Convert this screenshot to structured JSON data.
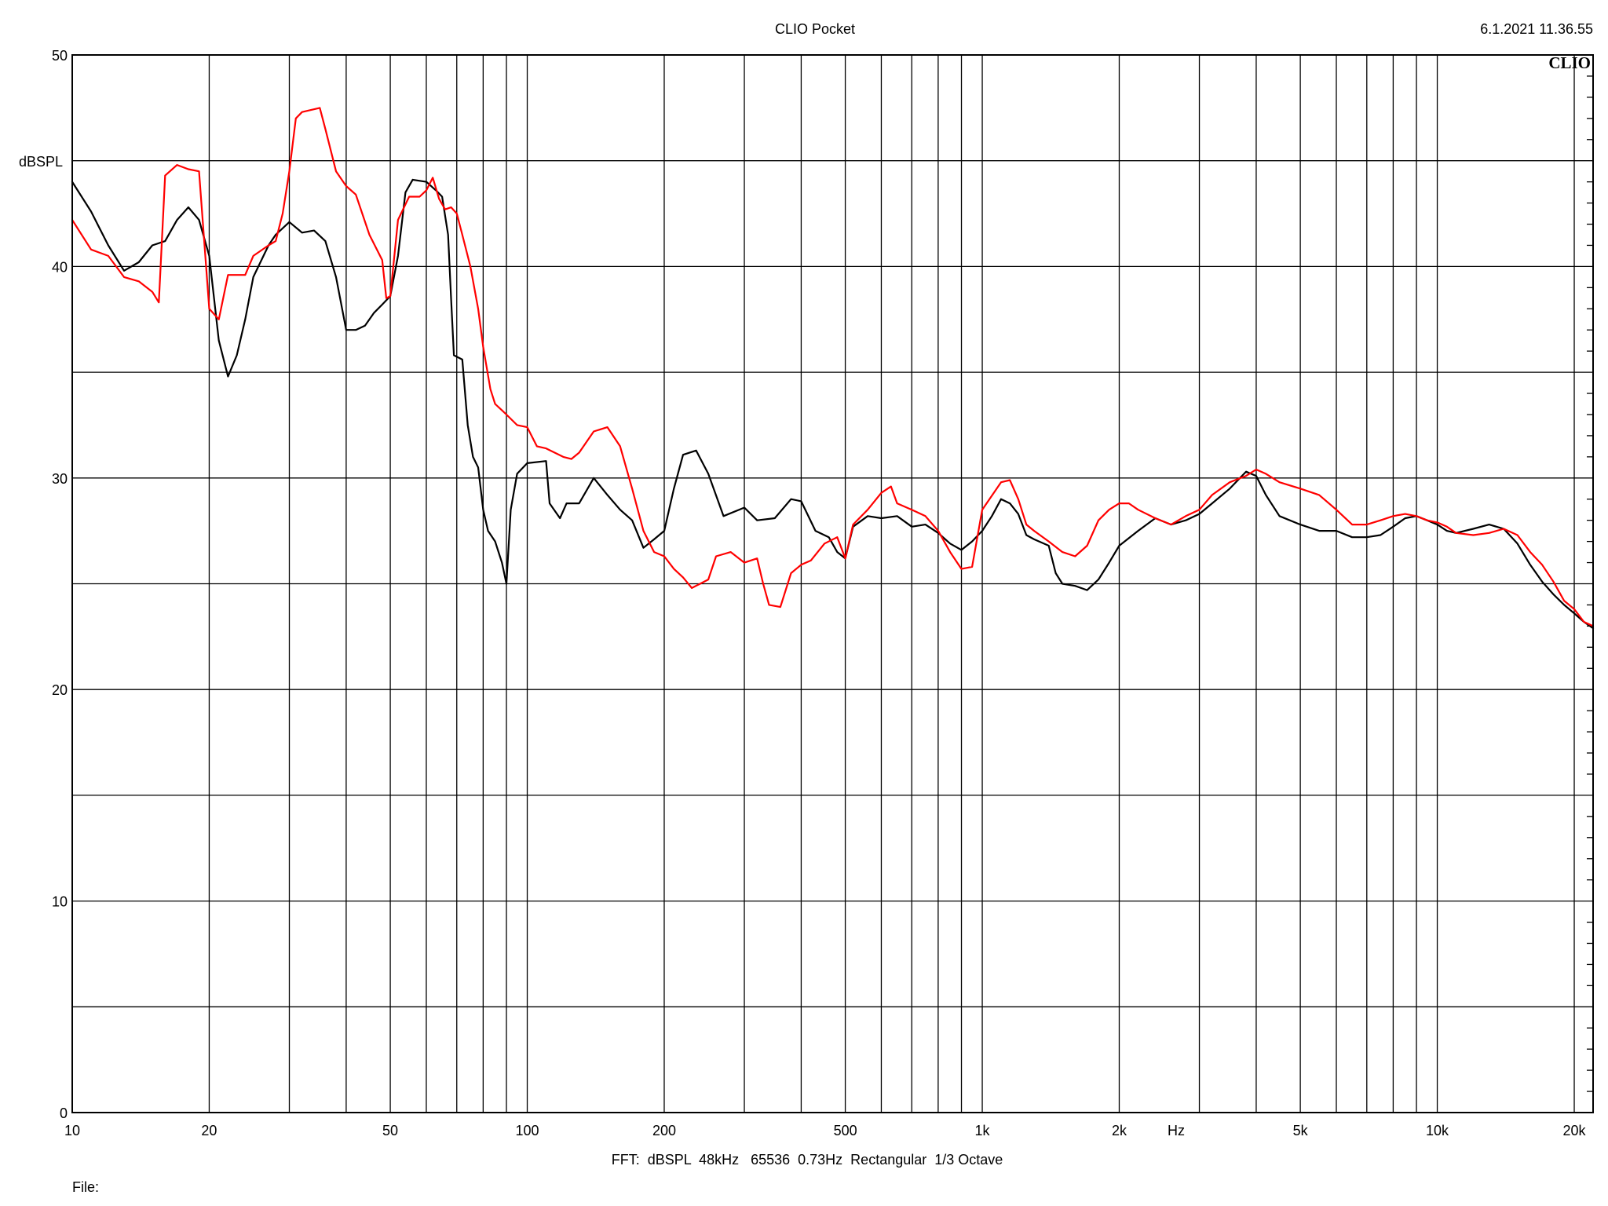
{
  "header": {
    "title": "CLIO Pocket",
    "timestamp": "6.1.2021 11.36.55",
    "logo": "CLIO"
  },
  "footer": {
    "settings": "FFT:  dBSPL  48kHz   65536  0.73Hz  Rectangular  1/3 Octave",
    "file_label": "File:"
  },
  "chart_data": {
    "type": "line",
    "title": "CLIO Pocket",
    "xlabel": "Hz",
    "ylabel": "dBSPL",
    "x_scale": "log",
    "xlim": [
      10,
      22000
    ],
    "ylim": [
      0,
      50
    ],
    "grid": true,
    "x_ticks": [
      {
        "value": 10,
        "label": "10"
      },
      {
        "value": 20,
        "label": "20"
      },
      {
        "value": 50,
        "label": "50"
      },
      {
        "value": 100,
        "label": "100"
      },
      {
        "value": 200,
        "label": "200"
      },
      {
        "value": 500,
        "label": "500"
      },
      {
        "value": 1000,
        "label": "1k"
      },
      {
        "value": 2000,
        "label": "2k"
      },
      {
        "value": 5000,
        "label": "5k"
      },
      {
        "value": 10000,
        "label": "10k"
      },
      {
        "value": 20000,
        "label": "20k"
      }
    ],
    "y_ticks": [
      {
        "value": 0,
        "label": "0"
      },
      {
        "value": 10,
        "label": "10"
      },
      {
        "value": 20,
        "label": "20"
      },
      {
        "value": 30,
        "label": "30"
      },
      {
        "value": 40,
        "label": "40"
      },
      {
        "value": 50,
        "label": "50"
      }
    ],
    "series": [
      {
        "color": "#000000",
        "points": [
          [
            10,
            44
          ],
          [
            11,
            42.6
          ],
          [
            12,
            41
          ],
          [
            13,
            39.8
          ],
          [
            14,
            40.2
          ],
          [
            15,
            41
          ],
          [
            16,
            41.2
          ],
          [
            17,
            42.2
          ],
          [
            18,
            42.8
          ],
          [
            19,
            42.2
          ],
          [
            20,
            40.5
          ],
          [
            21,
            36.5
          ],
          [
            22,
            34.8
          ],
          [
            23,
            35.8
          ],
          [
            24,
            37.5
          ],
          [
            25,
            39.5
          ],
          [
            27,
            41
          ],
          [
            28,
            41.5
          ],
          [
            30,
            42.1
          ],
          [
            32,
            41.6
          ],
          [
            34,
            41.7
          ],
          [
            36,
            41.2
          ],
          [
            38,
            39.5
          ],
          [
            40,
            37
          ],
          [
            42,
            37
          ],
          [
            44,
            37.2
          ],
          [
            46,
            37.8
          ],
          [
            48,
            38.2
          ],
          [
            50,
            38.6
          ],
          [
            52,
            40.5
          ],
          [
            54,
            43.5
          ],
          [
            56,
            44.1
          ],
          [
            60,
            44
          ],
          [
            63,
            43.6
          ],
          [
            65,
            43.3
          ],
          [
            67,
            41.5
          ],
          [
            68,
            38.5
          ],
          [
            69,
            35.8
          ],
          [
            72,
            35.6
          ],
          [
            74,
            32.5
          ],
          [
            76,
            31
          ],
          [
            78,
            30.5
          ],
          [
            80,
            28.5
          ],
          [
            82,
            27.5
          ],
          [
            85,
            27
          ],
          [
            88,
            26
          ],
          [
            90,
            25
          ],
          [
            92,
            28.5
          ],
          [
            95,
            30.2
          ],
          [
            100,
            30.7
          ],
          [
            110,
            30.8
          ],
          [
            112,
            28.8
          ],
          [
            118,
            28.1
          ],
          [
            122,
            28.8
          ],
          [
            130,
            28.8
          ],
          [
            140,
            30
          ],
          [
            150,
            29.2
          ],
          [
            160,
            28.5
          ],
          [
            170,
            28
          ],
          [
            180,
            26.7
          ],
          [
            190,
            27.1
          ],
          [
            200,
            27.5
          ],
          [
            210,
            29.5
          ],
          [
            220,
            31.1
          ],
          [
            235,
            31.3
          ],
          [
            250,
            30.2
          ],
          [
            270,
            28.2
          ],
          [
            300,
            28.6
          ],
          [
            320,
            28
          ],
          [
            350,
            28.1
          ],
          [
            380,
            29
          ],
          [
            400,
            28.9
          ],
          [
            430,
            27.5
          ],
          [
            460,
            27.2
          ],
          [
            480,
            26.5
          ],
          [
            500,
            26.2
          ],
          [
            520,
            27.7
          ],
          [
            560,
            28.2
          ],
          [
            600,
            28.1
          ],
          [
            650,
            28.2
          ],
          [
            700,
            27.7
          ],
          [
            750,
            27.8
          ],
          [
            800,
            27.4
          ],
          [
            850,
            26.9
          ],
          [
            900,
            26.6
          ],
          [
            950,
            27
          ],
          [
            1000,
            27.5
          ],
          [
            1050,
            28.2
          ],
          [
            1100,
            29
          ],
          [
            1150,
            28.8
          ],
          [
            1200,
            28.3
          ],
          [
            1250,
            27.3
          ],
          [
            1300,
            27.1
          ],
          [
            1400,
            26.8
          ],
          [
            1450,
            25.5
          ],
          [
            1500,
            25
          ],
          [
            1600,
            24.9
          ],
          [
            1700,
            24.7
          ],
          [
            1800,
            25.2
          ],
          [
            1900,
            26
          ],
          [
            2000,
            26.8
          ],
          [
            2200,
            27.5
          ],
          [
            2400,
            28.1
          ],
          [
            2600,
            27.8
          ],
          [
            2800,
            28
          ],
          [
            3000,
            28.3
          ],
          [
            3200,
            28.8
          ],
          [
            3500,
            29.5
          ],
          [
            3800,
            30.3
          ],
          [
            4000,
            30.1
          ],
          [
            4200,
            29.2
          ],
          [
            4500,
            28.2
          ],
          [
            5000,
            27.8
          ],
          [
            5500,
            27.5
          ],
          [
            6000,
            27.5
          ],
          [
            6500,
            27.2
          ],
          [
            7000,
            27.2
          ],
          [
            7500,
            27.3
          ],
          [
            8000,
            27.7
          ],
          [
            8500,
            28.1
          ],
          [
            9000,
            28.2
          ],
          [
            9500,
            28
          ],
          [
            10000,
            27.8
          ],
          [
            10500,
            27.5
          ],
          [
            11000,
            27.4
          ],
          [
            12000,
            27.6
          ],
          [
            13000,
            27.8
          ],
          [
            14000,
            27.6
          ],
          [
            15000,
            26.9
          ],
          [
            16000,
            25.9
          ],
          [
            17000,
            25.1
          ],
          [
            18000,
            24.5
          ],
          [
            19000,
            24
          ],
          [
            20000,
            23.6
          ],
          [
            21000,
            23.2
          ],
          [
            22000,
            22.9
          ]
        ]
      },
      {
        "color": "#ff0000",
        "points": [
          [
            10,
            42.2
          ],
          [
            11,
            40.8
          ],
          [
            12,
            40.5
          ],
          [
            13,
            39.5
          ],
          [
            14,
            39.3
          ],
          [
            15,
            38.8
          ],
          [
            15.5,
            38.3
          ],
          [
            16,
            44.3
          ],
          [
            17,
            44.8
          ],
          [
            18,
            44.6
          ],
          [
            19,
            44.5
          ],
          [
            20,
            38
          ],
          [
            21,
            37.5
          ],
          [
            22,
            39.6
          ],
          [
            24,
            39.6
          ],
          [
            25,
            40.5
          ],
          [
            27,
            41
          ],
          [
            28,
            41.2
          ],
          [
            29,
            42.5
          ],
          [
            30,
            44.5
          ],
          [
            31,
            47
          ],
          [
            32,
            47.3
          ],
          [
            35,
            47.5
          ],
          [
            36,
            46.5
          ],
          [
            38,
            44.5
          ],
          [
            40,
            43.8
          ],
          [
            42,
            43.4
          ],
          [
            45,
            41.5
          ],
          [
            48,
            40.3
          ],
          [
            49,
            38.5
          ],
          [
            50,
            38.6
          ],
          [
            52,
            42.2
          ],
          [
            55,
            43.3
          ],
          [
            58,
            43.3
          ],
          [
            60,
            43.6
          ],
          [
            62,
            44.2
          ],
          [
            64,
            43.2
          ],
          [
            66,
            42.7
          ],
          [
            68,
            42.8
          ],
          [
            70,
            42.5
          ],
          [
            72,
            41.5
          ],
          [
            75,
            40
          ],
          [
            78,
            38
          ],
          [
            80,
            36.2
          ],
          [
            83,
            34.2
          ],
          [
            85,
            33.5
          ],
          [
            88,
            33.2
          ],
          [
            90,
            33
          ],
          [
            95,
            32.5
          ],
          [
            100,
            32.4
          ],
          [
            105,
            31.5
          ],
          [
            110,
            31.4
          ],
          [
            120,
            31
          ],
          [
            125,
            30.9
          ],
          [
            130,
            31.2
          ],
          [
            140,
            32.2
          ],
          [
            150,
            32.4
          ],
          [
            160,
            31.5
          ],
          [
            170,
            29.5
          ],
          [
            180,
            27.5
          ],
          [
            190,
            26.5
          ],
          [
            200,
            26.3
          ],
          [
            210,
            25.7
          ],
          [
            220,
            25.3
          ],
          [
            230,
            24.8
          ],
          [
            250,
            25.2
          ],
          [
            260,
            26.3
          ],
          [
            280,
            26.5
          ],
          [
            300,
            26
          ],
          [
            320,
            26.2
          ],
          [
            330,
            25
          ],
          [
            340,
            24
          ],
          [
            360,
            23.9
          ],
          [
            380,
            25.5
          ],
          [
            400,
            25.9
          ],
          [
            420,
            26.1
          ],
          [
            450,
            26.9
          ],
          [
            480,
            27.2
          ],
          [
            500,
            26.2
          ],
          [
            520,
            27.8
          ],
          [
            560,
            28.5
          ],
          [
            600,
            29.3
          ],
          [
            630,
            29.6
          ],
          [
            650,
            28.8
          ],
          [
            700,
            28.5
          ],
          [
            750,
            28.2
          ],
          [
            800,
            27.5
          ],
          [
            850,
            26.5
          ],
          [
            900,
            25.7
          ],
          [
            950,
            25.8
          ],
          [
            1000,
            28.5
          ],
          [
            1100,
            29.8
          ],
          [
            1150,
            29.9
          ],
          [
            1200,
            29
          ],
          [
            1250,
            27.8
          ],
          [
            1300,
            27.5
          ],
          [
            1400,
            27
          ],
          [
            1500,
            26.5
          ],
          [
            1600,
            26.3
          ],
          [
            1700,
            26.8
          ],
          [
            1800,
            28
          ],
          [
            1900,
            28.5
          ],
          [
            2000,
            28.8
          ],
          [
            2100,
            28.8
          ],
          [
            2200,
            28.5
          ],
          [
            2400,
            28.1
          ],
          [
            2600,
            27.8
          ],
          [
            2800,
            28.2
          ],
          [
            3000,
            28.5
          ],
          [
            3200,
            29.2
          ],
          [
            3500,
            29.8
          ],
          [
            3800,
            30.1
          ],
          [
            4000,
            30.4
          ],
          [
            4200,
            30.2
          ],
          [
            4500,
            29.8
          ],
          [
            5000,
            29.5
          ],
          [
            5500,
            29.2
          ],
          [
            6000,
            28.5
          ],
          [
            6500,
            27.8
          ],
          [
            7000,
            27.8
          ],
          [
            7500,
            28
          ],
          [
            8000,
            28.2
          ],
          [
            8500,
            28.3
          ],
          [
            9000,
            28.2
          ],
          [
            9500,
            28
          ],
          [
            10000,
            27.9
          ],
          [
            10500,
            27.7
          ],
          [
            11000,
            27.4
          ],
          [
            12000,
            27.3
          ],
          [
            13000,
            27.4
          ],
          [
            14000,
            27.6
          ],
          [
            15000,
            27.3
          ],
          [
            16000,
            26.5
          ],
          [
            17000,
            25.9
          ],
          [
            18000,
            25.1
          ],
          [
            19000,
            24.2
          ],
          [
            20000,
            23.8
          ],
          [
            21000,
            23.2
          ],
          [
            22000,
            23
          ]
        ]
      }
    ]
  }
}
